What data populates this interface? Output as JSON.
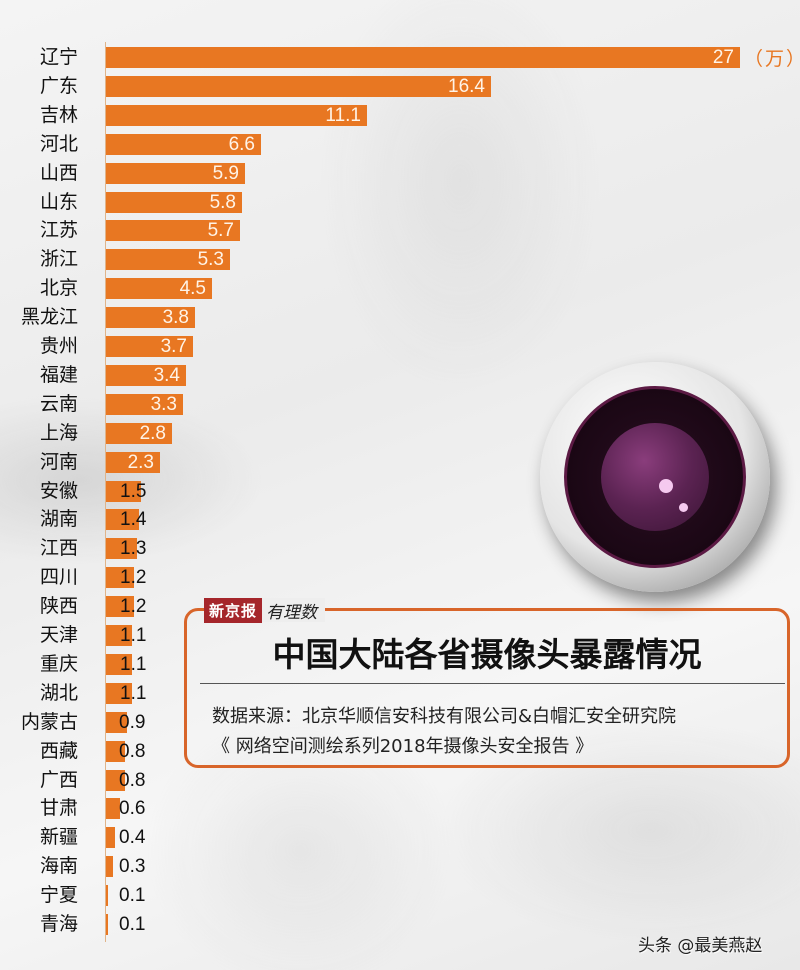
{
  "chart_data": {
    "type": "bar",
    "orientation": "horizontal",
    "title": "中国大陆各省摄像头暴露情况",
    "unit": "（万）",
    "xlabel": "",
    "ylabel": "",
    "xlim": [
      0,
      27
    ],
    "grid": false,
    "legend": null,
    "categories": [
      "辽宁",
      "广东",
      "吉林",
      "河北",
      "山西",
      "山东",
      "江苏",
      "浙江",
      "北京",
      "黑龙江",
      "贵州",
      "福建",
      "云南",
      "上海",
      "河南",
      "安徽",
      "湖南",
      "江西",
      "四川",
      "陕西",
      "天津",
      "重庆",
      "湖北",
      "内蒙古",
      "西藏",
      "广西",
      "甘肃",
      "新疆",
      "海南",
      "宁夏",
      "青海"
    ],
    "values": [
      27,
      16.4,
      11.1,
      6.6,
      5.9,
      5.8,
      5.7,
      5.3,
      4.5,
      3.8,
      3.7,
      3.4,
      3.3,
      2.8,
      2.3,
      1.5,
      1.4,
      1.3,
      1.2,
      1.2,
      1.1,
      1.1,
      1.1,
      0.9,
      0.8,
      0.8,
      0.6,
      0.4,
      0.3,
      0.1,
      0.1
    ],
    "value_labels": [
      "27",
      "16.4",
      "11.1",
      "6.6",
      "5.9",
      "5.8",
      "5.7",
      "5.3",
      "4.5",
      "3.8",
      "3.7",
      "3.4",
      "3.3",
      "2.8",
      "2.3",
      "1.5",
      "1.4",
      "1.3",
      "1.2",
      "1.2",
      "1.1",
      "1.1",
      "1.1",
      "0.9",
      "0.8",
      "0.8",
      "0.6",
      "0.4",
      "0.3",
      "0.1",
      "0.1"
    ],
    "bar_color": "#e87722"
  },
  "header_box": {
    "brand_name": "新京报",
    "brand_column": "有理数",
    "title": "中国大陆各省摄像头暴露情况",
    "source_line1": "数据来源：北京华顺信安科技有限公司&白帽汇安全研究院",
    "source_line2": "《 网络空间测绘系列2018年摄像头安全报告 》",
    "border_color": "#d8652a",
    "brand_color": "#a5262b"
  },
  "unit_label": "（万）",
  "watermark": "头条 @最美燕赵"
}
